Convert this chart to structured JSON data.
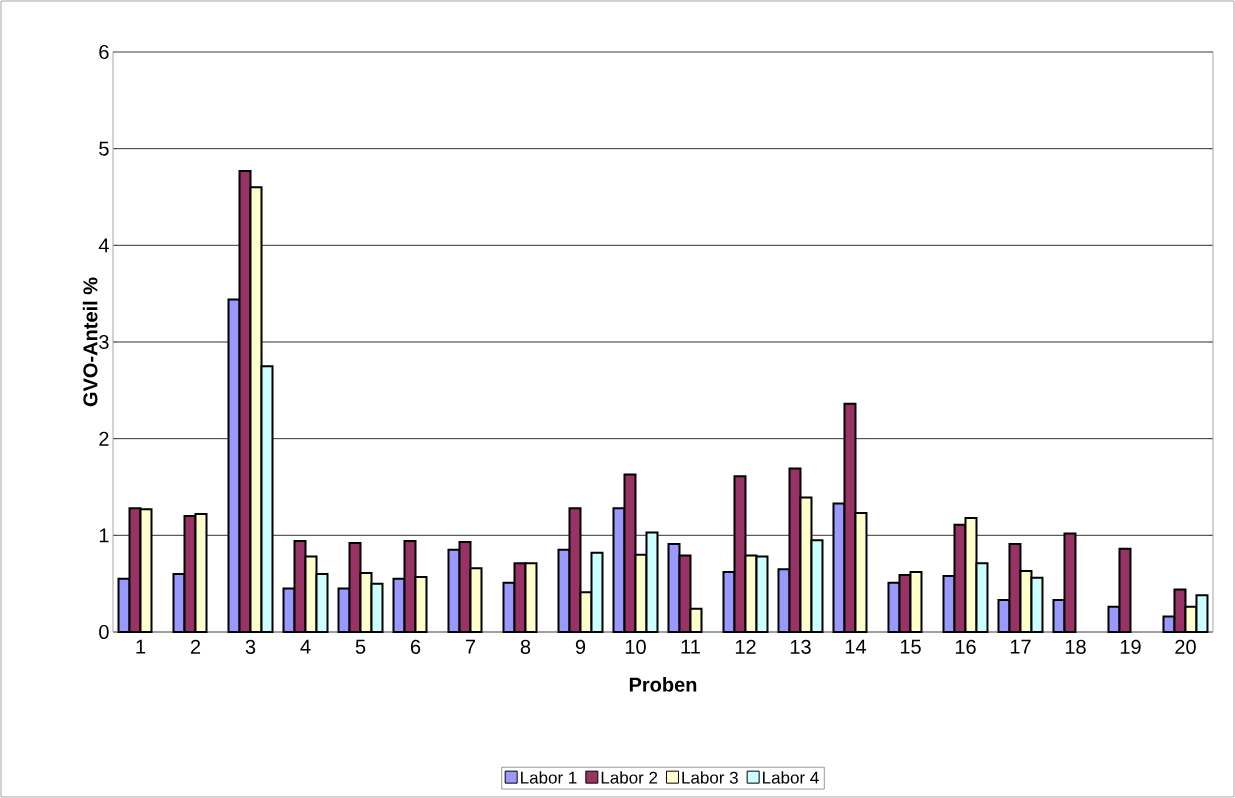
{
  "chart_data": {
    "type": "bar",
    "xlabel": "Proben",
    "ylabel": "GVO-Anteil %",
    "categories": [
      "1",
      "2",
      "3",
      "4",
      "5",
      "6",
      "7",
      "8",
      "9",
      "10",
      "11",
      "12",
      "13",
      "14",
      "15",
      "16",
      "17",
      "18",
      "19",
      "20"
    ],
    "series": [
      {
        "name": "Labor 1",
        "color": "#9999ff",
        "values": [
          0.55,
          0.6,
          3.44,
          0.45,
          0.45,
          0.55,
          0.85,
          0.51,
          0.85,
          1.28,
          0.91,
          0.62,
          0.65,
          1.33,
          0.51,
          0.58,
          0.33,
          0.33,
          0.26,
          0.16
        ]
      },
      {
        "name": "Labor 2",
        "color": "#993366",
        "values": [
          1.28,
          1.2,
          4.77,
          0.94,
          0.92,
          0.94,
          0.93,
          0.71,
          1.28,
          1.63,
          0.79,
          1.61,
          1.69,
          2.36,
          0.59,
          1.11,
          0.91,
          1.02,
          0.86,
          0.44
        ]
      },
      {
        "name": "Labor 3",
        "color": "#ffffcc",
        "values": [
          1.27,
          1.22,
          4.6,
          0.78,
          0.61,
          0.57,
          0.66,
          0.71,
          0.41,
          0.8,
          0.24,
          0.79,
          1.39,
          1.23,
          0.62,
          1.18,
          0.63,
          null,
          null,
          0.26
        ]
      },
      {
        "name": "Labor 4",
        "color": "#ccffff",
        "values": [
          null,
          null,
          2.75,
          0.6,
          0.5,
          null,
          null,
          null,
          0.82,
          1.03,
          null,
          0.78,
          0.95,
          null,
          null,
          0.71,
          0.56,
          null,
          null,
          0.38
        ]
      }
    ],
    "ylim": [
      0,
      6
    ],
    "yticks": [
      0,
      1,
      2,
      3,
      4,
      5,
      6
    ],
    "grid": "y",
    "legend": "bottom"
  }
}
